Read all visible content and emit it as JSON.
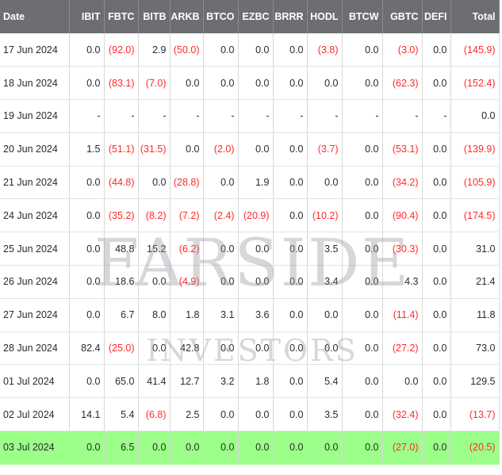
{
  "columns": [
    "Date",
    "IBIT",
    "FBTC",
    "BITB",
    "ARKB",
    "BTCO",
    "EZBC",
    "BRRR",
    "HODL",
    "BTCW",
    "GBTC",
    "DEFI",
    "Total"
  ],
  "rows": [
    [
      "17 Jun 2024",
      "0.0",
      "(92.0)",
      "2.9",
      "(50.0)",
      "0.0",
      "0.0",
      "0.0",
      "(3.8)",
      "0.0",
      "(3.0)",
      "0.0",
      "(145.9)"
    ],
    [
      "18 Jun 2024",
      "0.0",
      "(83.1)",
      "(7.0)",
      "0.0",
      "0.0",
      "0.0",
      "0.0",
      "0.0",
      "0.0",
      "(62.3)",
      "0.0",
      "(152.4)"
    ],
    [
      "19 Jun 2024",
      "-",
      "-",
      "-",
      "-",
      "-",
      "-",
      "-",
      "-",
      "-",
      "-",
      "-",
      "0.0"
    ],
    [
      "20 Jun 2024",
      "1.5",
      "(51.1)",
      "(31.5)",
      "0.0",
      "(2.0)",
      "0.0",
      "0.0",
      "(3.7)",
      "0.0",
      "(53.1)",
      "0.0",
      "(139.9)"
    ],
    [
      "21 Jun 2024",
      "0.0",
      "(44.8)",
      "0.0",
      "(28.8)",
      "0.0",
      "1.9",
      "0.0",
      "0.0",
      "0.0",
      "(34.2)",
      "0.0",
      "(105.9)"
    ],
    [
      "24 Jun 2024",
      "0.0",
      "(35.2)",
      "(8.2)",
      "(7.2)",
      "(2.4)",
      "(20.9)",
      "0.0",
      "(10.2)",
      "0.0",
      "(90.4)",
      "0.0",
      "(174.5)"
    ],
    [
      "25 Jun 2024",
      "0.0",
      "48.8",
      "15.2",
      "(6.2)",
      "0.0",
      "0.0",
      "0.0",
      "3.5",
      "0.0",
      "(30.3)",
      "0.0",
      "31.0"
    ],
    [
      "26 Jun 2024",
      "0.0",
      "18.6",
      "0.0",
      "(4.9)",
      "0.0",
      "0.0",
      "0.0",
      "3.4",
      "0.0",
      "4.3",
      "0.0",
      "21.4"
    ],
    [
      "27 Jun 2024",
      "0.0",
      "6.7",
      "8.0",
      "1.8",
      "3.1",
      "3.6",
      "0.0",
      "0.0",
      "0.0",
      "(11.4)",
      "0.0",
      "11.8"
    ],
    [
      "28 Jun 2024",
      "82.4",
      "(25.0)",
      "0.0",
      "42.8",
      "0.0",
      "0.0",
      "0.0",
      "0.0",
      "0.0",
      "(27.2)",
      "0.0",
      "73.0"
    ],
    [
      "01 Jul 2024",
      "0.0",
      "65.0",
      "41.4",
      "12.7",
      "3.2",
      "1.8",
      "0.0",
      "5.4",
      "0.0",
      "0.0",
      "0.0",
      "129.5"
    ],
    [
      "02 Jul 2024",
      "14.1",
      "5.4",
      "(6.8)",
      "2.5",
      "0.0",
      "0.0",
      "0.0",
      "3.5",
      "0.0",
      "(32.4)",
      "0.0",
      "(13.7)"
    ],
    [
      "03 Jul 2024",
      "0.0",
      "6.5",
      "0.0",
      "0.0",
      "0.0",
      "0.0",
      "0.0",
      "0.0",
      "0.0",
      "(27.0)",
      "0.0",
      "(20.5)"
    ]
  ],
  "highlight_row": "03 Jul 2024",
  "watermark": {
    "line1": "FARSIDE",
    "line2": "INVESTORS"
  },
  "colors": {
    "header_bg": "#6d6e72",
    "negative": "#ff2a2a",
    "highlight": "#9cff8a"
  }
}
